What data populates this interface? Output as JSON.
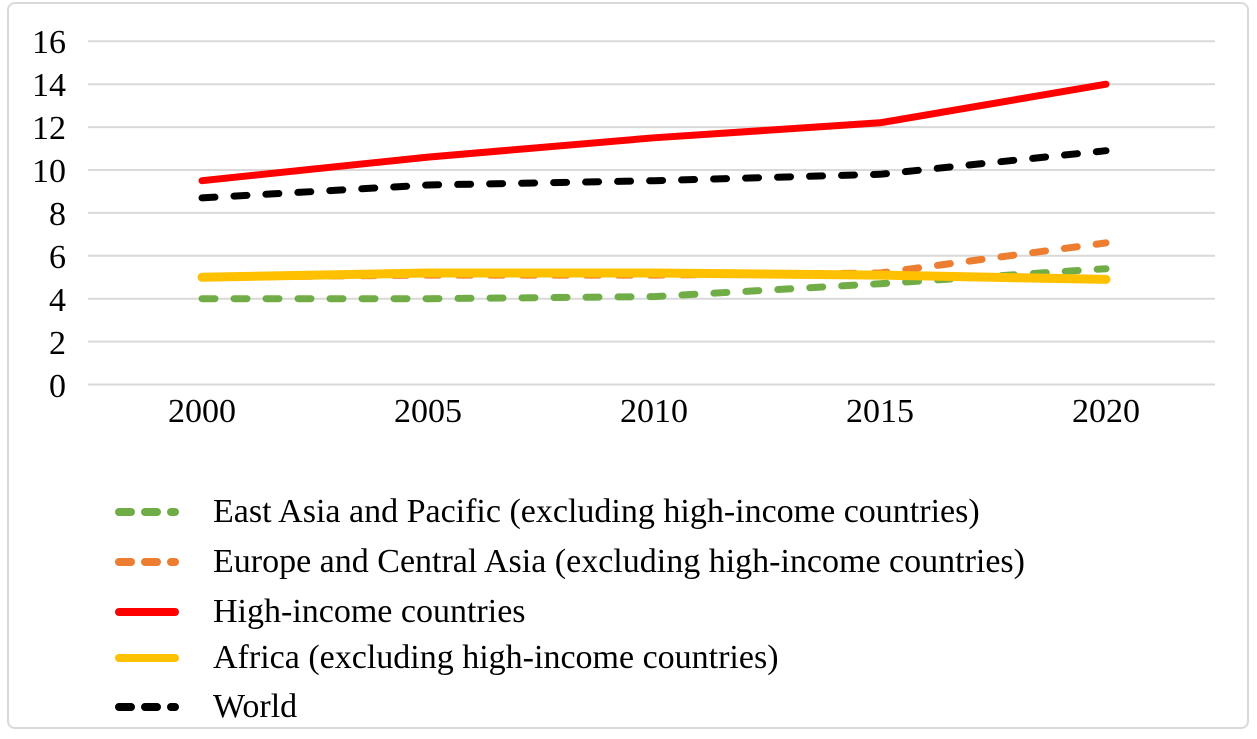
{
  "chart_data": {
    "type": "line",
    "x": [
      2000,
      2005,
      2010,
      2015,
      2020
    ],
    "x_tick_labels": [
      "2000",
      "2005",
      "2010",
      "2015",
      "2020"
    ],
    "y_ticks": [
      0,
      2,
      4,
      6,
      8,
      10,
      12,
      14,
      16
    ],
    "ylim": [
      0,
      16
    ],
    "grid": "horizontal",
    "legend_position": "bottom-left",
    "series": [
      {
        "name": "East Asia and Pacific (excluding high-income countries)",
        "color": "#70AD47",
        "style": "dashed",
        "values": [
          4.0,
          4.0,
          4.1,
          4.7,
          5.4
        ]
      },
      {
        "name": "Europe and Central Asia (excluding high-income countries)",
        "color": "#ED7D31",
        "style": "dashed",
        "values": [
          5.0,
          5.1,
          5.1,
          5.2,
          6.6
        ]
      },
      {
        "name": "High-income countries",
        "color": "#FF0000",
        "style": "solid",
        "values": [
          9.5,
          10.6,
          11.5,
          12.2,
          14.0
        ]
      },
      {
        "name": "Africa (excluding high-income countries)",
        "color": "#FFC000",
        "style": "solid",
        "values": [
          5.0,
          5.2,
          5.2,
          5.1,
          4.9
        ]
      },
      {
        "name": "World",
        "color": "#000000",
        "style": "dashed",
        "values": [
          8.7,
          9.3,
          9.5,
          9.8,
          10.9
        ]
      }
    ]
  },
  "colors": {
    "gridline": "#D9D9D9",
    "frame_border": "#D9D9D9",
    "background": "#FFFFFF",
    "text": "#000000"
  }
}
